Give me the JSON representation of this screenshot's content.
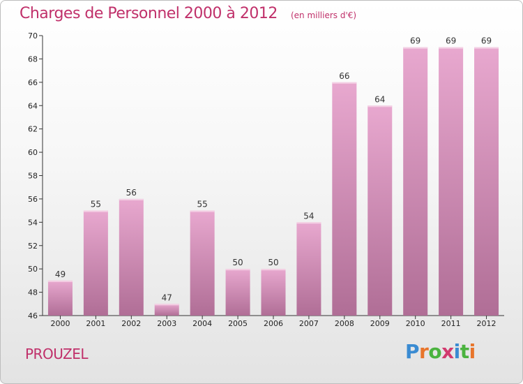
{
  "title": "Charges de Personnel 2000 à 2012",
  "subtitle": "(en milliers d'€)",
  "commune": "PROUZEL",
  "logo": {
    "icon": "proxiti-logo",
    "letters": [
      "P",
      "r",
      "o",
      "x",
      "i",
      "t",
      "i"
    ]
  },
  "colors": {
    "title": "#c0306a",
    "bar_top": "#e8a8cf",
    "bar_bottom": "#b06e96",
    "axis": "#333333"
  },
  "chart_data": {
    "type": "bar",
    "categories": [
      "2000",
      "2001",
      "2002",
      "2003",
      "2004",
      "2005",
      "2006",
      "2007",
      "2008",
      "2009",
      "2010",
      "2011",
      "2012"
    ],
    "values": [
      49,
      55,
      56,
      47,
      55,
      50,
      50,
      54,
      66,
      64,
      69,
      69,
      69
    ],
    "data_labels": [
      "49",
      "55",
      "56",
      "47",
      "55",
      "50",
      "50",
      "54",
      "66",
      "64",
      "69",
      "69",
      "69"
    ],
    "ylim": [
      46,
      70
    ],
    "yticks": [
      "46",
      "48",
      "50",
      "52",
      "54",
      "56",
      "58",
      "60",
      "62",
      "64",
      "66",
      "68",
      "70"
    ],
    "grid": false
  }
}
